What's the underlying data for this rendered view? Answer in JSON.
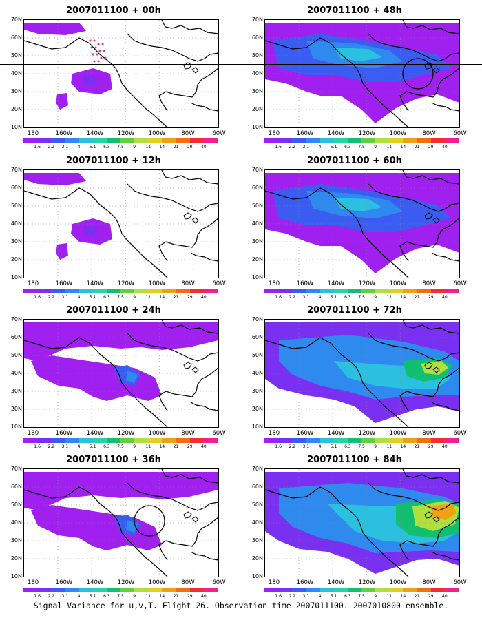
{
  "lat_labels": [
    "70N",
    "60N",
    "50N",
    "40N",
    "30N",
    "20N",
    "10N"
  ],
  "lon_labels": [
    "180",
    "160W",
    "140W",
    "120W",
    "100W",
    "80W",
    "60W"
  ],
  "colorbar": {
    "colors": [
      "#a020f0",
      "#7a30f0",
      "#3a5cf0",
      "#2f8af0",
      "#2cc0e0",
      "#22d6a8",
      "#10c070",
      "#60d040",
      "#b0e040",
      "#e0d020",
      "#f0a010",
      "#f07010",
      "#f03030",
      "#f02090"
    ],
    "labels": [
      "1.6",
      "2.2",
      "3.1",
      "4",
      "5.1",
      "6.3",
      "7.5",
      "9",
      "11",
      "14",
      "21",
      "29",
      "40"
    ]
  },
  "panels": [
    {
      "title": "2007011100 + 00h",
      "intensity": 0
    },
    {
      "title": "2007011100 + 48h",
      "intensity": 2
    },
    {
      "title": "2007011100 + 12h",
      "intensity": 0
    },
    {
      "title": "2007011100 + 60h",
      "intensity": 2
    },
    {
      "title": "2007011100 + 24h",
      "intensity": 1
    },
    {
      "title": "2007011100 + 72h",
      "intensity": 3
    },
    {
      "title": "2007011100 + 36h",
      "intensity": 1
    },
    {
      "title": "2007011100 + 84h",
      "intensity": 4
    }
  ],
  "caption": "Signal Variance for u,v,T. Flight 26. Observation time 2007011100. 2007010800 ensemble."
}
